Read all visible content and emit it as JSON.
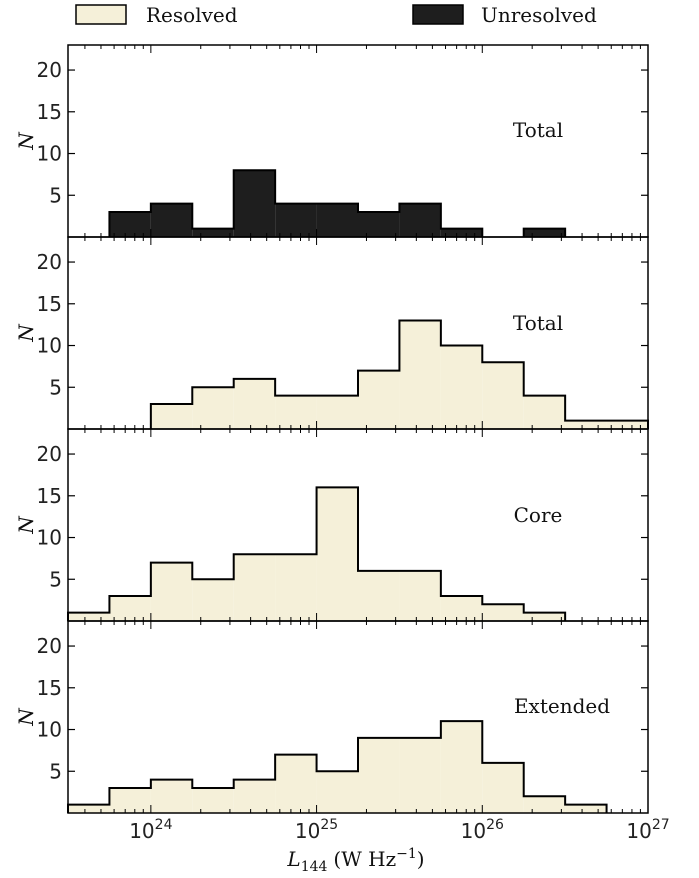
{
  "legend": {
    "resolved_label": "Resolved",
    "unresolved_label": "Unresolved",
    "resolved_color": "#f5f0d9",
    "unresolved_color": "#1e1e1e"
  },
  "axes": {
    "ylabel": "N",
    "xlabel_base": "L",
    "xlabel_sub": "144",
    "xlabel_units": "(W Hz",
    "xlabel_units_exp": "−1",
    "xlabel_units_close": ")",
    "xticks": [
      {
        "base": "10",
        "exp": "24",
        "value": 24
      },
      {
        "base": "10",
        "exp": "25",
        "value": 25
      },
      {
        "base": "10",
        "exp": "26",
        "value": 26
      },
      {
        "base": "10",
        "exp": "27",
        "value": 27
      }
    ],
    "yticks": [
      "5",
      "10",
      "15",
      "20"
    ]
  },
  "chart_data": [
    {
      "type": "bar",
      "label": "Total",
      "series": "Unresolved",
      "x_scale": "log",
      "xlim": [
        23.5,
        27.0
      ],
      "ylim": [
        0,
        23
      ],
      "bin_edges": [
        23.75,
        24.0,
        24.25,
        24.5,
        24.75,
        25.0,
        25.25,
        25.5,
        25.75,
        26.0,
        26.25,
        26.5
      ],
      "values": [
        3,
        4,
        1,
        8,
        4,
        4,
        3,
        4,
        1,
        0,
        1
      ]
    },
    {
      "type": "bar",
      "label": "Total",
      "series": "Resolved",
      "x_scale": "log",
      "xlim": [
        23.5,
        27.0
      ],
      "ylim": [
        0,
        23
      ],
      "bin_edges": [
        24.0,
        24.25,
        24.5,
        24.75,
        25.0,
        25.25,
        25.5,
        25.75,
        26.0,
        26.25,
        26.5,
        26.75,
        27.0
      ],
      "values": [
        3,
        5,
        6,
        4,
        4,
        7,
        13,
        10,
        8,
        4,
        1,
        1
      ]
    },
    {
      "type": "bar",
      "label": "Core",
      "series": "Resolved",
      "x_scale": "log",
      "xlim": [
        23.5,
        27.0
      ],
      "ylim": [
        0,
        23
      ],
      "bin_edges": [
        23.5,
        23.75,
        24.0,
        24.25,
        24.5,
        24.75,
        25.0,
        25.25,
        25.5,
        25.75,
        26.0,
        26.25,
        26.5
      ],
      "values": [
        1,
        3,
        7,
        5,
        8,
        8,
        16,
        6,
        6,
        3,
        2,
        1
      ]
    },
    {
      "type": "bar",
      "label": "Extended",
      "series": "Resolved",
      "x_scale": "log",
      "xlim": [
        23.5,
        27.0
      ],
      "ylim": [
        0,
        23
      ],
      "bin_edges": [
        23.5,
        23.75,
        24.0,
        24.25,
        24.5,
        24.75,
        25.0,
        25.25,
        25.5,
        25.75,
        26.0,
        26.25,
        26.5,
        26.75
      ],
      "values": [
        1,
        3,
        4,
        3,
        4,
        7,
        5,
        9,
        9,
        11,
        6,
        2,
        1
      ]
    }
  ]
}
